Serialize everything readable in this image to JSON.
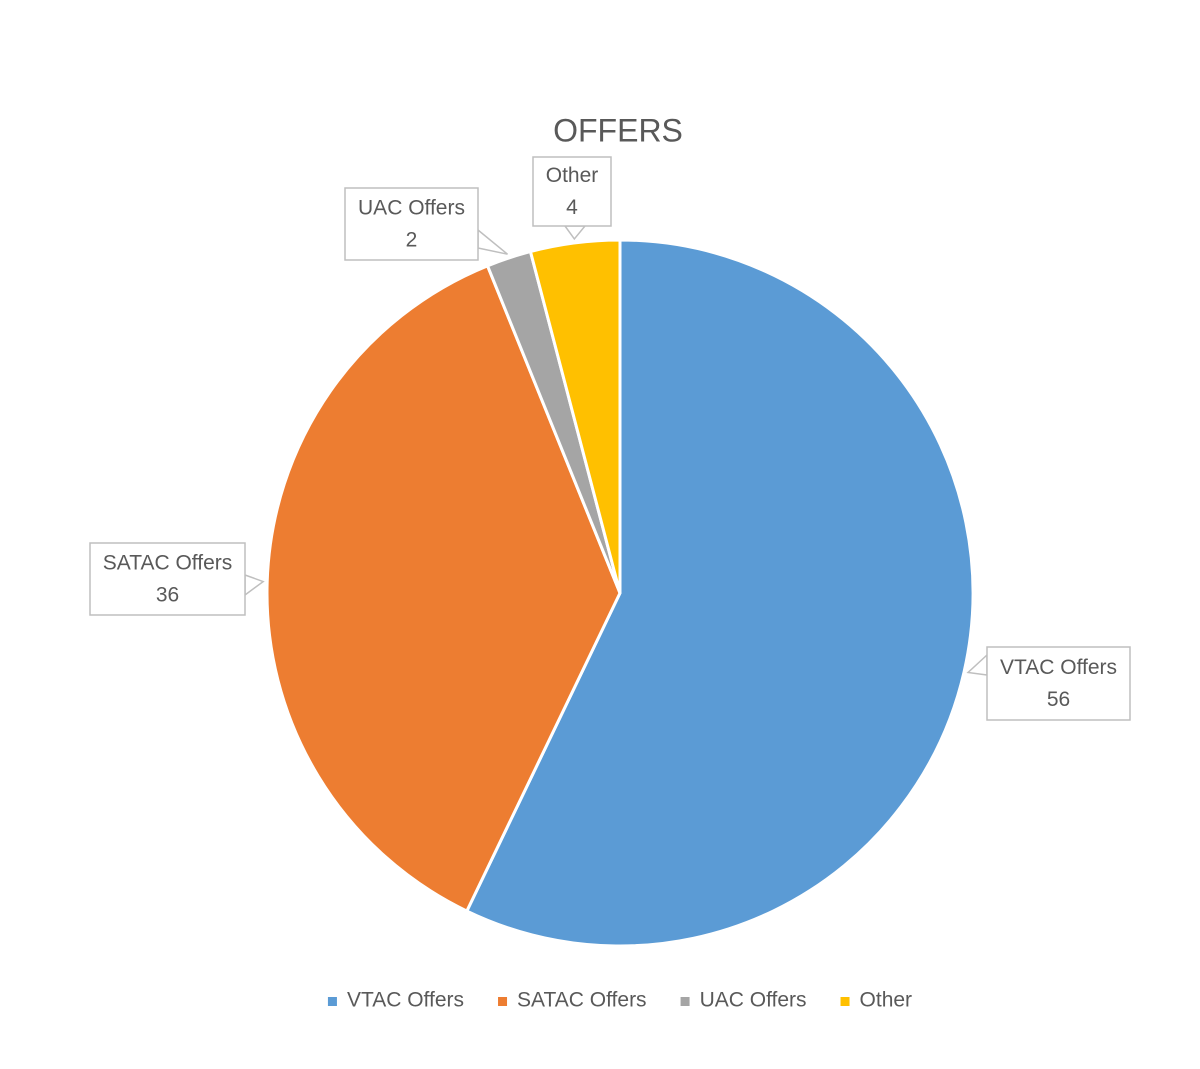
{
  "chart_data": {
    "type": "pie",
    "title": "OFFERS",
    "categories": [
      "VTAC Offers",
      "SATAC Offers",
      "UAC Offers",
      "Other"
    ],
    "values": [
      56,
      36,
      2,
      4
    ],
    "colors": [
      "#5b9bd5",
      "#ed7d31",
      "#a5a5a5",
      "#ffc000"
    ],
    "legend": "bottom"
  }
}
